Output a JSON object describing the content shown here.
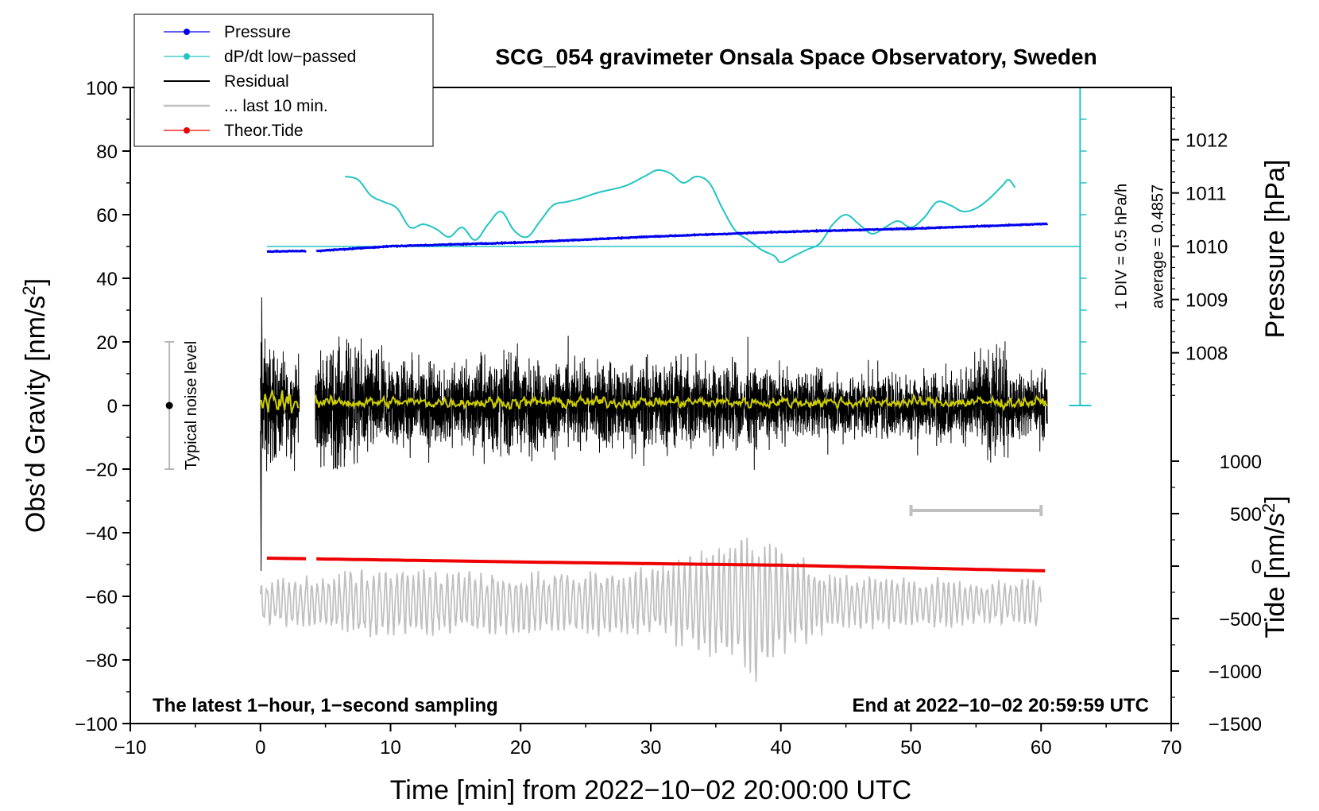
{
  "chart_data": {
    "type": "line",
    "title": "SCG_054 gravimeter Onsala Space Observatory, Sweden",
    "xlabel": "Time [min] from 2022−10−02 20:00:00 UTC",
    "ylabel_left": "Obs’d Gravity [nm/s",
    "ylabel_left_sup": "2",
    "ylabel_left_end": "]",
    "ylabel_right_top": "Pressure [hPa]",
    "ylabel_right_bottom": "Tide [nm/s",
    "ylabel_right_bottom_sup": "2",
    "ylabel_right_bottom_end": "]",
    "xlim": [
      -10,
      70
    ],
    "ylim_left": [
      -100,
      100
    ],
    "x_ticks": [
      {
        "v": -10,
        "label": "−10"
      },
      {
        "v": 0,
        "label": "0"
      },
      {
        "v": 10,
        "label": "10"
      },
      {
        "v": 20,
        "label": "20"
      },
      {
        "v": 30,
        "label": "30"
      },
      {
        "v": 40,
        "label": "40"
      },
      {
        "v": 50,
        "label": "50"
      },
      {
        "v": 60,
        "label": "60"
      },
      {
        "v": 70,
        "label": "70"
      }
    ],
    "y_ticks_left": [
      {
        "v": 100,
        "label": "100"
      },
      {
        "v": 80,
        "label": "80"
      },
      {
        "v": 60,
        "label": "60"
      },
      {
        "v": 40,
        "label": "40"
      },
      {
        "v": 20,
        "label": "20"
      },
      {
        "v": 0,
        "label": "0"
      },
      {
        "v": -20,
        "label": "−20"
      },
      {
        "v": -40,
        "label": "−40"
      },
      {
        "v": -60,
        "label": "−60"
      },
      {
        "v": -80,
        "label": "−80"
      },
      {
        "v": -100,
        "label": "−100"
      }
    ],
    "pressure_axis": {
      "ticks": [
        {
          "v": 1012,
          "label": "1012"
        },
        {
          "v": 1011,
          "label": "1011"
        },
        {
          "v": 1010,
          "label": "1010"
        },
        {
          "v": 1009,
          "label": "1009"
        },
        {
          "v": 1008,
          "label": "1008"
        }
      ],
      "hpa_at_left_100": 1012.98,
      "hpa_per_left_unit": 0.0597
    },
    "tide_axis": {
      "ticks": [
        {
          "v": 1000,
          "label": "1000"
        },
        {
          "v": 500,
          "label": "500"
        },
        {
          "v": 0,
          "label": "0"
        },
        {
          "v": -500,
          "label": "−500"
        },
        {
          "v": -1000,
          "label": "−1000"
        },
        {
          "v": -1500,
          "label": "−1500"
        }
      ],
      "tide_at_left_minus100": -1500,
      "tide_per_left_unit": 30.3
    },
    "legend": [
      {
        "label": "Pressure",
        "color": "#0000ee",
        "marker": true
      },
      {
        "label": "dP/dt low−passed",
        "color": "#22c4c4",
        "marker": true
      },
      {
        "label": "Residual",
        "color": "#000000",
        "marker": false
      },
      {
        "label": "... last 10 min.",
        "color": "#c0c0c0",
        "marker": false
      },
      {
        "label": "Theor.Tide",
        "color": "#ee0000",
        "marker": true
      }
    ],
    "series": [
      {
        "name": "Pressure",
        "color": "#0000ee",
        "unit": "hPa",
        "points": [
          [
            0.5,
            1009.9
          ],
          [
            3.5,
            1009.91
          ],
          [
            4.3,
            1009.91
          ],
          [
            10,
            1010.0
          ],
          [
            20,
            1010.07
          ],
          [
            30,
            1010.18
          ],
          [
            40,
            1010.27
          ],
          [
            50,
            1010.33
          ],
          [
            56,
            1010.38
          ],
          [
            60.5,
            1010.42
          ]
        ]
      },
      {
        "name": "dP/dt low−passed",
        "color": "#22c4c4",
        "unit": "nm/s2 (left axis)",
        "points": [
          [
            6.5,
            72
          ],
          [
            7.5,
            71
          ],
          [
            8.5,
            66
          ],
          [
            9.5,
            64
          ],
          [
            10.5,
            62
          ],
          [
            11.5,
            56
          ],
          [
            12.5,
            57
          ],
          [
            13.5,
            55.5
          ],
          [
            14.5,
            53
          ],
          [
            15.5,
            56
          ],
          [
            16.5,
            52
          ],
          [
            17.5,
            57
          ],
          [
            18.5,
            61
          ],
          [
            19.5,
            55
          ],
          [
            20.5,
            53
          ],
          [
            21.5,
            58
          ],
          [
            22.5,
            63
          ],
          [
            23.5,
            64
          ],
          [
            24.5,
            65
          ],
          [
            26,
            67
          ],
          [
            28,
            69
          ],
          [
            29.5,
            72
          ],
          [
            30.5,
            74
          ],
          [
            31.5,
            73
          ],
          [
            32.5,
            70
          ],
          [
            33.5,
            72
          ],
          [
            34.5,
            70
          ],
          [
            35.5,
            62
          ],
          [
            36.5,
            55
          ],
          [
            37.5,
            52
          ],
          [
            38.5,
            49
          ],
          [
            39.5,
            47
          ],
          [
            40,
            45
          ],
          [
            41,
            47
          ],
          [
            42,
            49
          ],
          [
            43,
            51
          ],
          [
            44,
            57
          ],
          [
            45,
            60
          ],
          [
            46,
            57
          ],
          [
            47,
            54
          ],
          [
            48,
            56
          ],
          [
            49,
            58
          ],
          [
            50,
            56
          ],
          [
            51,
            59
          ],
          [
            52,
            64
          ],
          [
            53,
            63
          ],
          [
            54,
            61
          ],
          [
            55,
            62
          ],
          [
            56,
            65
          ],
          [
            57,
            69
          ],
          [
            57.5,
            71
          ],
          [
            58,
            68.5
          ]
        ]
      },
      {
        "name": "Residual",
        "color": "#000000",
        "unit": "nm/s2",
        "segments": [
          [
            0,
            3
          ],
          [
            4.2,
            60.5
          ]
        ],
        "amplitude_profile": [
          [
            0,
            30
          ],
          [
            2,
            20
          ],
          [
            4,
            20
          ],
          [
            6,
            28
          ],
          [
            10,
            20
          ],
          [
            14,
            18
          ],
          [
            18,
            22
          ],
          [
            24,
            18
          ],
          [
            30,
            20
          ],
          [
            36,
            18
          ],
          [
            40,
            14
          ],
          [
            46,
            15
          ],
          [
            50,
            14
          ],
          [
            54,
            15
          ],
          [
            56.5,
            26
          ],
          [
            58,
            14
          ],
          [
            60.5,
            14
          ]
        ]
      },
      {
        "name": "yellow smoothed residual",
        "color": "#cccc00",
        "unit": "nm/s2",
        "amplitude": 2.5
      },
      {
        "name": "... last 10 min.",
        "color": "#c0c0c0",
        "unit": "nm/s2 (left axis, offset)",
        "center": -62,
        "amplitude_profile": [
          [
            0,
            6
          ],
          [
            8,
            10
          ],
          [
            20,
            9
          ],
          [
            30,
            10
          ],
          [
            34,
            15
          ],
          [
            38,
            22
          ],
          [
            40,
            16
          ],
          [
            44,
            8
          ],
          [
            50,
            8
          ],
          [
            56,
            6
          ],
          [
            60,
            8
          ]
        ]
      },
      {
        "name": "Theor.Tide",
        "color": "#ee0000",
        "unit": "nm/s2 (left axis)",
        "segments": [
          [
            0.5,
            3.5
          ],
          [
            4.3,
            60.5
          ]
        ],
        "points": [
          [
            0.5,
            -48
          ],
          [
            20,
            -49.2
          ],
          [
            40,
            -50.2
          ],
          [
            60.5,
            -52
          ]
        ]
      }
    ],
    "scale_bar": {
      "center_y": 50,
      "half_range": 50,
      "x": 63,
      "label1": "1 DIV = 0.5 hPa/h",
      "label2": "average = 0.4857"
    },
    "noise_level": {
      "x": -7,
      "half_range": 20,
      "label": "Typical noise level"
    },
    "ten_min_bar": {
      "x_from": 50,
      "x_to": 60,
      "y": -33
    },
    "footer_left": "The latest 1−hour, 1−second sampling",
    "footer_right": "End at 2022−10−02 20:59:59 UTC"
  }
}
